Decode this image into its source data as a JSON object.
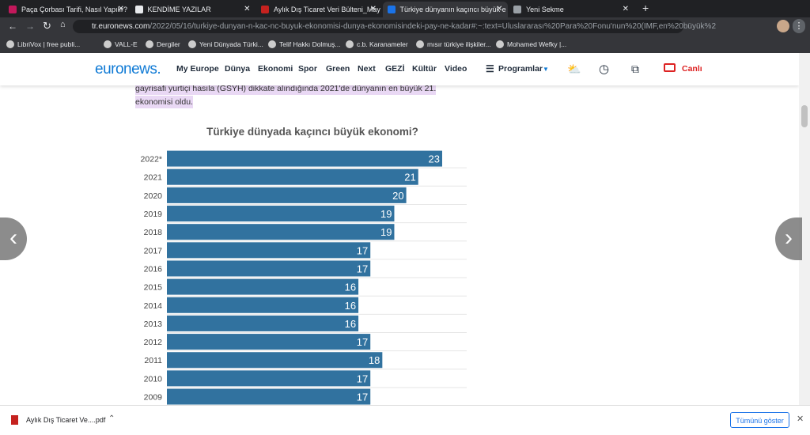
{
  "tabs": [
    "Paça Çorbası Tarifi, Nasıl Yapılır?",
    "KENDİME YAZILAR",
    "Aylık Dış Ticaret Veri Bülteni_May",
    "Türkiye dünyanın kaçıncı büyük e",
    "Yeni Sekme"
  ],
  "address": {
    "host": "tr.euronews.com",
    "path": "/2022/05/16/turkiye-dunyan-n-kac-nc-buyuk-ekonomisi-dunya-ekonomisindeki-pay-ne-kadar#:~:text=Uluslararası%20Para%20Fonu'nun%20(IMF,en%20büyük%2"
  },
  "bookmarks": [
    "LibriVox | free publi...",
    "VALL-E",
    "Dergiler",
    "Yeni Dünyada Türki...",
    "Telif Hakkı Dolmuş...",
    "c.b. Karanameler",
    "mısır türkiye ilişkiler...",
    "Mohamed Wefky |..."
  ],
  "nav": {
    "logo": "euronews.",
    "items": [
      "My Europe",
      "Dünya",
      "Ekonomi",
      "Spor",
      "Green",
      "Next",
      "GEZİ",
      "Kültür",
      "Video"
    ],
    "programs": "Programlar",
    "live": "Canlı"
  },
  "article": {
    "lines": [
      "gayrisafi yurtiçi hasıla (GSYH) dikkate alındığında 2021'de dünyanın en büyük 21.",
      "ekonomisi oldu."
    ]
  },
  "chart_data": {
    "type": "bar",
    "orientation": "horizontal",
    "title": "Türkiye dünyada kaçıncı büyük ekonomi?",
    "color": "#31729f",
    "categories": [
      "2022*",
      "2021",
      "2020",
      "2019",
      "2018",
      "2017",
      "2016",
      "2015",
      "2014",
      "2013",
      "2012",
      "2011",
      "2010",
      "2009"
    ],
    "values": [
      23,
      21,
      20,
      19,
      19,
      17,
      17,
      16,
      16,
      16,
      17,
      18,
      17,
      17
    ]
  },
  "download": {
    "file": "Aylık Dış Ticaret Ve....pdf",
    "show_all": "Tümünü göster"
  }
}
